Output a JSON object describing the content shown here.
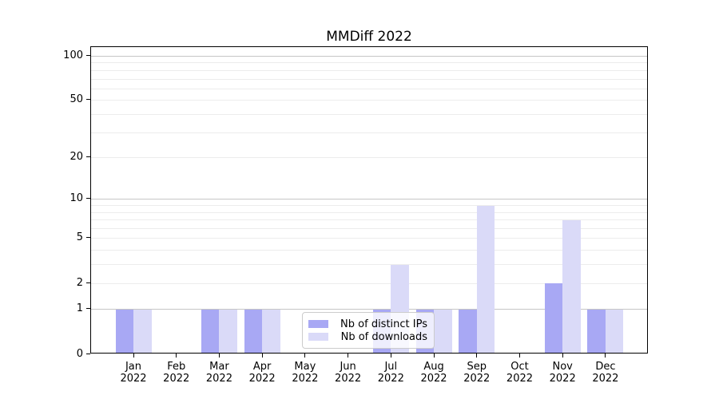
{
  "title": "MMDiff 2022",
  "legend": {
    "items": [
      {
        "label": "Nb of distinct IPs",
        "color": "#a8a8f4"
      },
      {
        "label": "Nb of downloads",
        "color": "#dadaf8"
      }
    ]
  },
  "chart_data": {
    "type": "bar",
    "title": "MMDiff 2022",
    "categories": [
      "Jan",
      "Feb",
      "Mar",
      "Apr",
      "May",
      "Jun",
      "Jul",
      "Aug",
      "Sep",
      "Oct",
      "Nov",
      "Dec"
    ],
    "category_sublabel": "2022",
    "series": [
      {
        "name": "Nb of distinct IPs",
        "color": "#a8a8f4",
        "values": [
          1,
          0,
          1,
          1,
          0,
          0,
          1,
          1,
          1,
          0,
          2,
          1
        ]
      },
      {
        "name": "Nb of downloads",
        "color": "#dadaf8",
        "values": [
          1,
          0,
          1,
          1,
          0,
          0,
          3,
          1,
          9,
          0,
          7,
          1
        ]
      }
    ],
    "xlabel": "",
    "ylabel": "",
    "y_scale": "log1p",
    "ylim": [
      0,
      116
    ],
    "y_tick_values": [
      0,
      1,
      2,
      5,
      10,
      20,
      50,
      100
    ],
    "y_tick_labels": [
      "0",
      "1",
      "2",
      "5",
      "10",
      "20",
      "50",
      "100"
    ],
    "y_major_gridlines": [
      1,
      10,
      100
    ],
    "y_minor_gridlines": [
      2,
      3,
      4,
      5,
      6,
      7,
      8,
      9,
      20,
      30,
      40,
      50,
      60,
      70,
      80,
      90
    ],
    "grid": true,
    "legend_position": "lower center",
    "colors": {
      "major_grid": "#c6c6c6",
      "minor_grid": "#ececec",
      "spine": "#000000",
      "text": "#000000",
      "background": "#ffffff"
    }
  }
}
